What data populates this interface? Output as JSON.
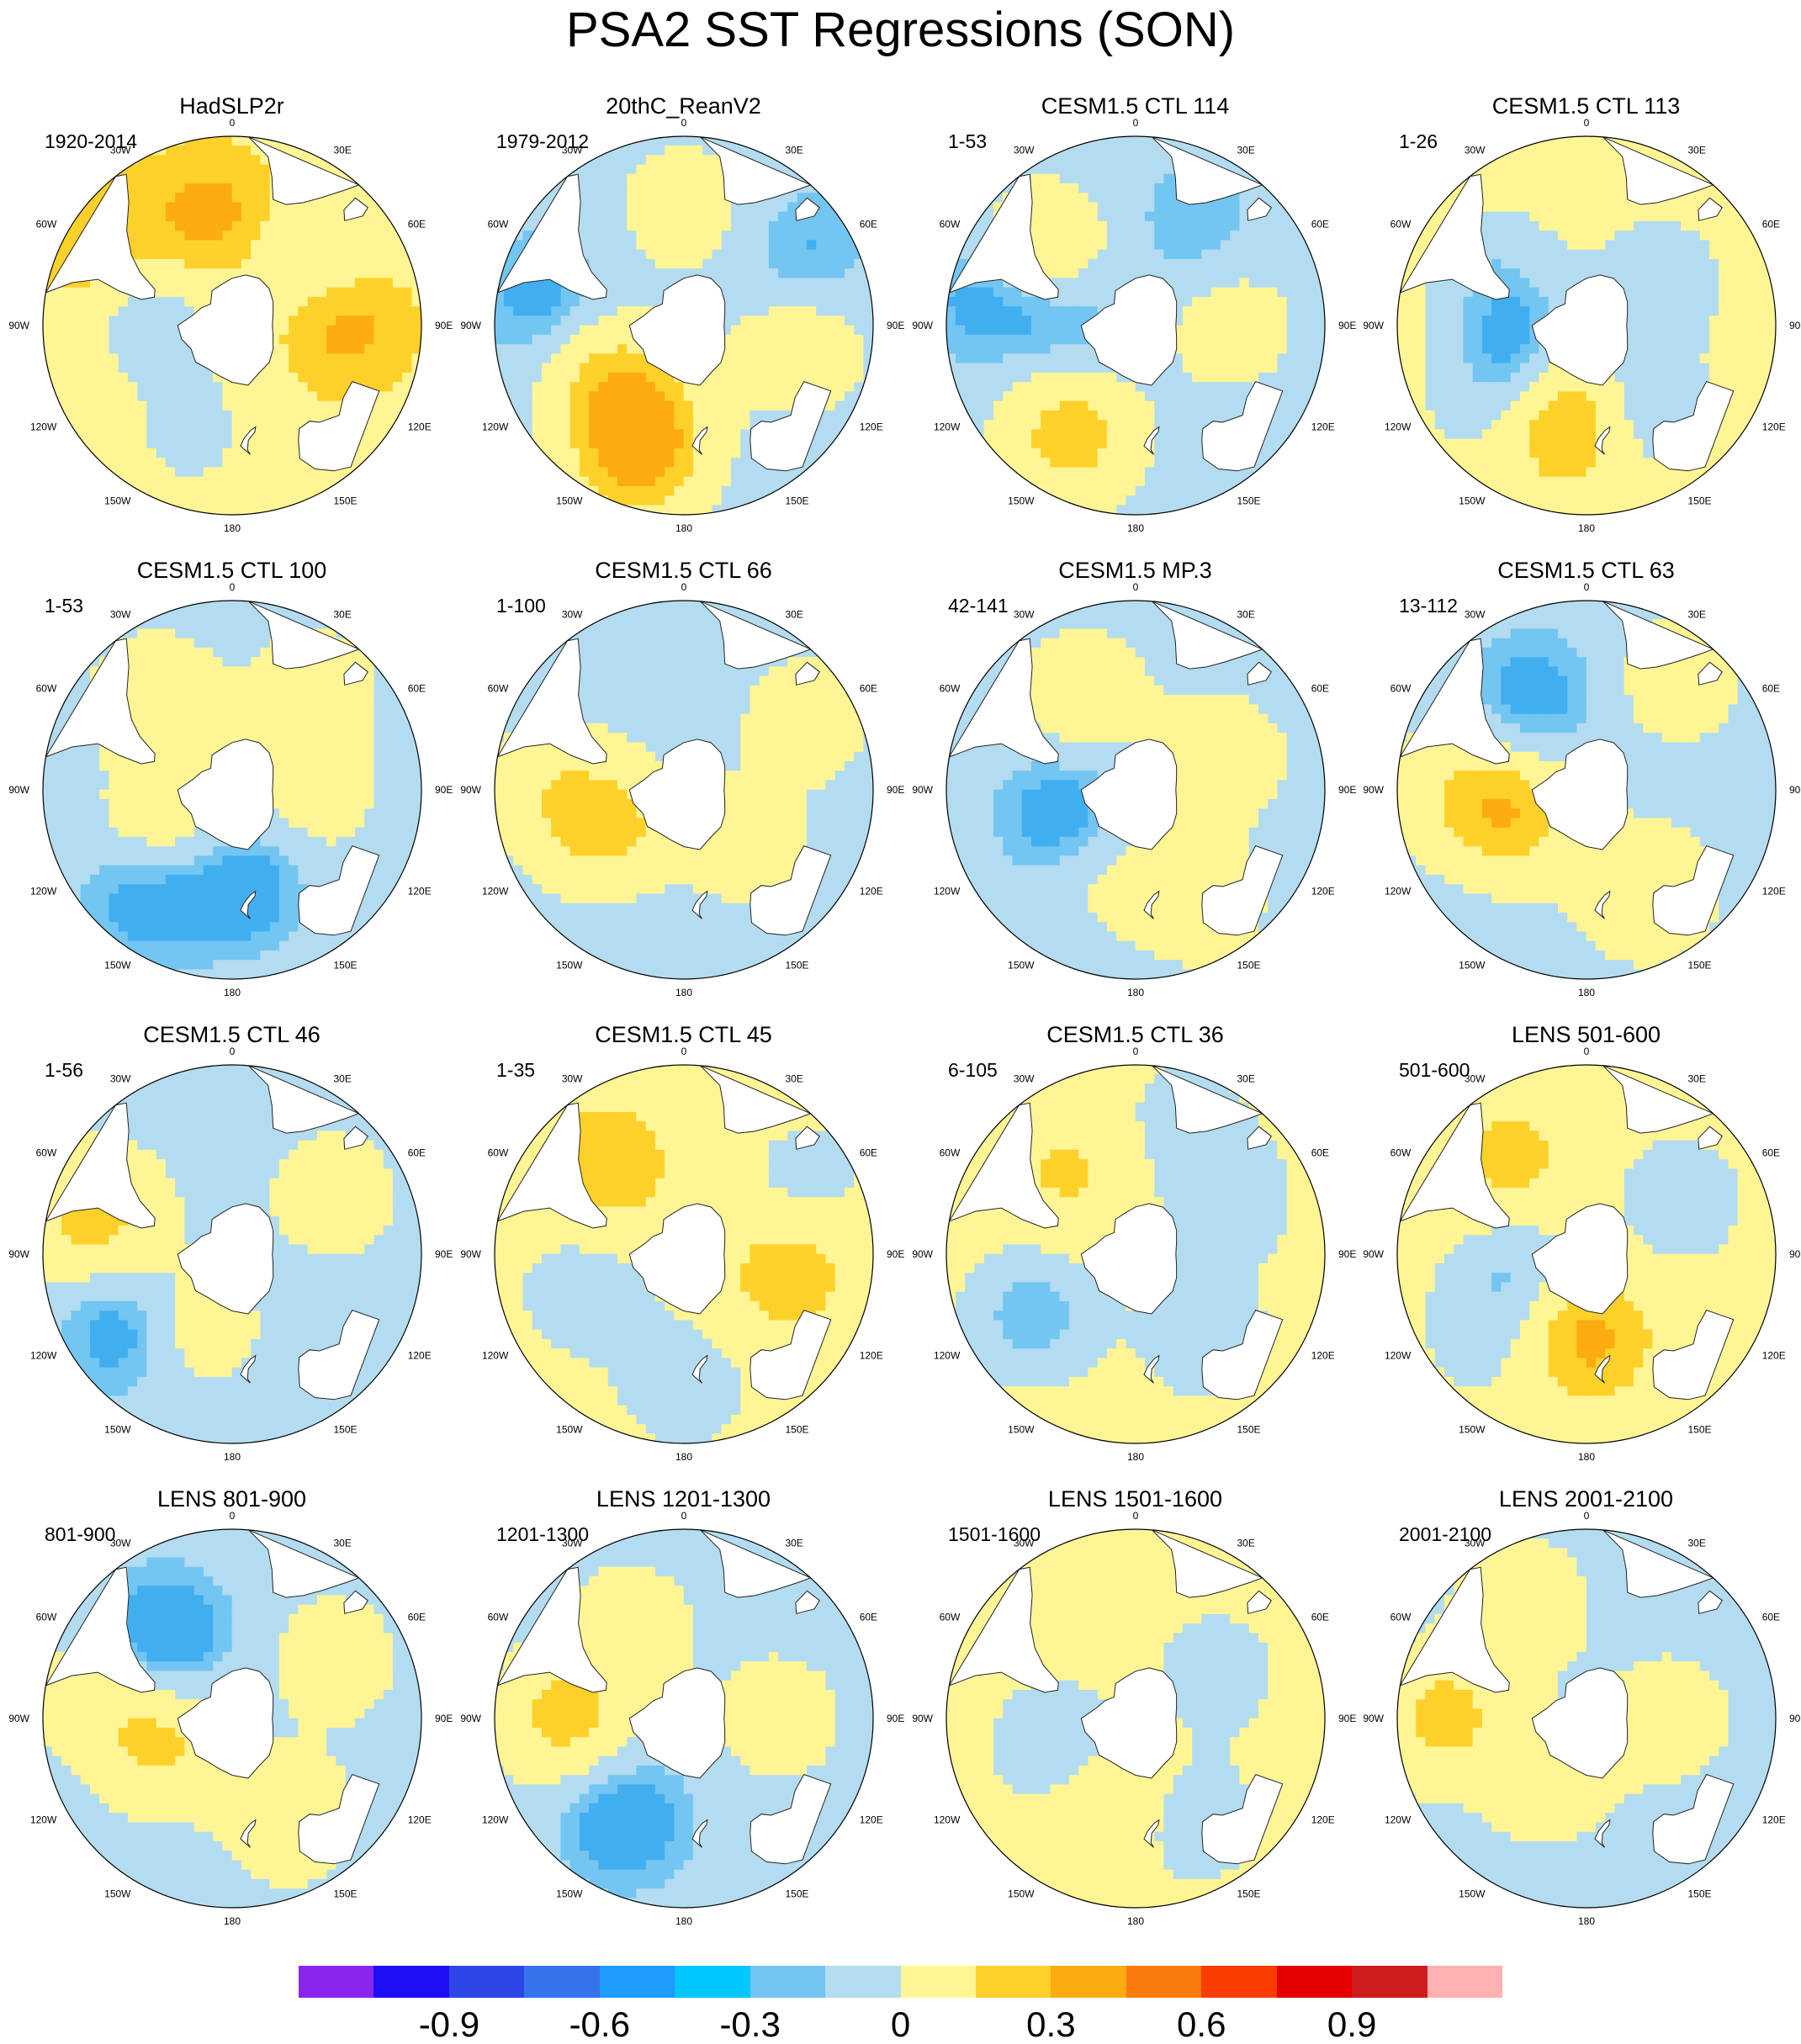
{
  "title": "PSA2 SST Regressions (SON)",
  "map_labels": {
    "lon": [
      "0",
      "30E",
      "60E",
      "90E",
      "120E",
      "150E",
      "180",
      "150W",
      "120W",
      "90W",
      "60W",
      "30W"
    ]
  },
  "colors": {
    "neg_weak": "#b3dcf0",
    "neg_mod": "#73c5f2",
    "neg_strong": "#41aef0",
    "pos_weak": "#fff595",
    "pos_mod": "#fdd12a",
    "pos_strong": "#fcab11",
    "land": "#ffffff",
    "coast": "#222222"
  },
  "colorbar": {
    "colors": [
      "#8a25ed",
      "#1e0df5",
      "#2f46e6",
      "#3573ea",
      "#1f9aff",
      "#00c7ff",
      "#73c5f2",
      "#b3dcf0",
      "#fff595",
      "#fdd12a",
      "#fcab11",
      "#fb7a0e",
      "#fb3d00",
      "#e60000",
      "#d01c1e",
      "#ffb0b0"
    ],
    "tick_labels": [
      "-0.9",
      "-0.6",
      "-0.3",
      "0",
      "0.3",
      "0.6",
      "0.9"
    ]
  },
  "chart_data": {
    "type": "polar-contour-map",
    "units_hint": "SST regression coefficient",
    "levels": [
      -1.05,
      -0.9,
      -0.75,
      -0.6,
      -0.45,
      -0.3,
      -0.15,
      0,
      0.15,
      0.3,
      0.45,
      0.6,
      0.75,
      0.9,
      1.05
    ],
    "panels": [
      {
        "title": "HadSLP2r",
        "period": "1920-2014",
        "base": 0.1,
        "anomalies": [
          {
            "lon": 280,
            "lat": -45,
            "value": -0.12
          },
          {
            "lon": 260,
            "lat": -65,
            "value": -0.1
          },
          {
            "lon": 200,
            "lat": -40,
            "value": -0.14
          },
          {
            "lon": 50,
            "lat": -45,
            "value": -0.13
          },
          {
            "lon": 350,
            "lat": -42,
            "value": 0.2
          },
          {
            "lon": 90,
            "lat": -42,
            "value": 0.2
          },
          {
            "lon": 300,
            "lat": -22,
            "value": 0.18
          }
        ]
      },
      {
        "title": "20thC_ReanV2",
        "period": "1979-2012",
        "base": -0.05,
        "anomalies": [
          {
            "lon": 200,
            "lat": -30,
            "value": 0.3
          },
          {
            "lon": 240,
            "lat": -50,
            "value": 0.2
          },
          {
            "lon": 200,
            "lat": -50,
            "value": 0.15
          },
          {
            "lon": 100,
            "lat": -40,
            "value": 0.15
          },
          {
            "lon": 60,
            "lat": -30,
            "value": -0.12
          },
          {
            "lon": 0,
            "lat": -40,
            "value": 0.12
          },
          {
            "lon": 280,
            "lat": -30,
            "value": -0.15
          }
        ]
      },
      {
        "title": "CESM1.5 CTL 114",
        "period": "1-53",
        "base": -0.05,
        "anomalies": [
          {
            "lon": 210,
            "lat": -35,
            "value": 0.25
          },
          {
            "lon": 240,
            "lat": -55,
            "value": 0.12
          },
          {
            "lon": 260,
            "lat": -60,
            "value": -0.2
          },
          {
            "lon": 310,
            "lat": -40,
            "value": 0.18
          },
          {
            "lon": 90,
            "lat": -50,
            "value": 0.12
          },
          {
            "lon": 30,
            "lat": -40,
            "value": -0.1
          },
          {
            "lon": 280,
            "lat": -25,
            "value": -0.14
          }
        ]
      },
      {
        "title": "CESM1.5 CTL 113",
        "period": "1-26",
        "base": 0.05,
        "anomalies": [
          {
            "lon": 190,
            "lat": -50,
            "value": 0.3
          },
          {
            "lon": 250,
            "lat": -60,
            "value": -0.2
          },
          {
            "lon": 150,
            "lat": -50,
            "value": -0.18
          },
          {
            "lon": 300,
            "lat": -45,
            "value": -0.12
          },
          {
            "lon": 60,
            "lat": -55,
            "value": -0.12
          },
          {
            "lon": 230,
            "lat": -35,
            "value": -0.08
          }
        ]
      },
      {
        "title": "CESM1.5 CTL 100",
        "period": "1-53",
        "base": -0.05,
        "anomalies": [
          {
            "lon": 220,
            "lat": -35,
            "value": -0.2
          },
          {
            "lon": 175,
            "lat": -50,
            "value": -0.18
          },
          {
            "lon": 235,
            "lat": -55,
            "value": 0.2
          },
          {
            "lon": 320,
            "lat": -40,
            "value": 0.15
          },
          {
            "lon": 40,
            "lat": -35,
            "value": 0.12
          },
          {
            "lon": 100,
            "lat": -55,
            "value": 0.1
          }
        ]
      },
      {
        "title": "CESM1.5 CTL 66",
        "period": "1-100",
        "base": -0.05,
        "anomalies": [
          {
            "lon": 240,
            "lat": -55,
            "value": 0.22
          },
          {
            "lon": 270,
            "lat": -35,
            "value": 0.15
          },
          {
            "lon": 140,
            "lat": -55,
            "value": 0.14
          },
          {
            "lon": 60,
            "lat": -30,
            "value": 0.12
          },
          {
            "lon": 180,
            "lat": -35,
            "value": -0.05
          }
        ]
      },
      {
        "title": "CESM1.5 MP.3",
        "period": "42-141",
        "base": -0.05,
        "anomalies": [
          {
            "lon": 250,
            "lat": -58,
            "value": -0.18
          },
          {
            "lon": 330,
            "lat": -45,
            "value": 0.15
          },
          {
            "lon": 150,
            "lat": -35,
            "value": 0.13
          },
          {
            "lon": 70,
            "lat": -50,
            "value": 0.12
          },
          {
            "lon": 200,
            "lat": -55,
            "value": 0.1
          }
        ]
      },
      {
        "title": "CESM1.5 CTL 63",
        "period": "13-112",
        "base": -0.05,
        "anomalies": [
          {
            "lon": 250,
            "lat": -58,
            "value": 0.25
          },
          {
            "lon": 270,
            "lat": -35,
            "value": 0.15
          },
          {
            "lon": 150,
            "lat": -40,
            "value": 0.18
          },
          {
            "lon": 330,
            "lat": -45,
            "value": -0.15
          },
          {
            "lon": 40,
            "lat": -30,
            "value": 0.12
          }
        ]
      },
      {
        "title": "CESM1.5 CTL 46",
        "period": "1-56",
        "base": -0.05,
        "anomalies": [
          {
            "lon": 235,
            "lat": -35,
            "value": -0.18
          },
          {
            "lon": 210,
            "lat": -55,
            "value": 0.15
          },
          {
            "lon": 290,
            "lat": -35,
            "value": 0.12
          },
          {
            "lon": 60,
            "lat": -40,
            "value": 0.12
          },
          {
            "lon": 280,
            "lat": -25,
            "value": 0.15
          }
        ]
      },
      {
        "title": "CESM1.5 CTL 45",
        "period": "1-35",
        "base": 0.05,
        "anomalies": [
          {
            "lon": 320,
            "lat": -40,
            "value": 0.2
          },
          {
            "lon": 250,
            "lat": -45,
            "value": -0.12
          },
          {
            "lon": 180,
            "lat": -35,
            "value": -0.12
          },
          {
            "lon": 100,
            "lat": -45,
            "value": 0.18
          },
          {
            "lon": 60,
            "lat": -30,
            "value": -0.1
          }
        ]
      },
      {
        "title": "CESM1.5 CTL 36",
        "period": "6-105",
        "base": 0.05,
        "anomalies": [
          {
            "lon": 240,
            "lat": -40,
            "value": -0.2
          },
          {
            "lon": 140,
            "lat": -45,
            "value": -0.12
          },
          {
            "lon": 60,
            "lat": -45,
            "value": -0.12
          },
          {
            "lon": 320,
            "lat": -45,
            "value": 0.12
          },
          {
            "lon": 20,
            "lat": -30,
            "value": -0.1
          }
        ]
      },
      {
        "title": "LENS 501-600",
        "period": "501-600",
        "base": 0.05,
        "anomalies": [
          {
            "lon": 180,
            "lat": -55,
            "value": 0.25
          },
          {
            "lon": 260,
            "lat": -60,
            "value": -0.15
          },
          {
            "lon": 60,
            "lat": -45,
            "value": -0.12
          },
          {
            "lon": 320,
            "lat": -40,
            "value": 0.15
          },
          {
            "lon": 230,
            "lat": -35,
            "value": -0.1
          }
        ]
      },
      {
        "title": "LENS 801-900",
        "period": "801-900",
        "base": -0.05,
        "anomalies": [
          {
            "lon": 250,
            "lat": -58,
            "value": 0.22
          },
          {
            "lon": 320,
            "lat": -45,
            "value": -0.2
          },
          {
            "lon": 150,
            "lat": -40,
            "value": 0.14
          },
          {
            "lon": 60,
            "lat": -40,
            "value": 0.12
          },
          {
            "lon": 280,
            "lat": -30,
            "value": 0.12
          }
        ]
      },
      {
        "title": "LENS 1201-1300",
        "period": "1201-1300",
        "base": -0.05,
        "anomalies": [
          {
            "lon": 270,
            "lat": -40,
            "value": 0.25
          },
          {
            "lon": 210,
            "lat": -40,
            "value": -0.18
          },
          {
            "lon": 330,
            "lat": -45,
            "value": 0.12
          },
          {
            "lon": 90,
            "lat": -50,
            "value": 0.12
          }
        ]
      },
      {
        "title": "LENS 1501-1600",
        "period": "1501-1600",
        "base": 0.05,
        "anomalies": [
          {
            "lon": 250,
            "lat": -55,
            "value": -0.15
          },
          {
            "lon": 150,
            "lat": -40,
            "value": -0.12
          },
          {
            "lon": 60,
            "lat": -50,
            "value": -0.1
          },
          {
            "lon": 200,
            "lat": -55,
            "value": 0.1
          }
        ]
      },
      {
        "title": "LENS 2001-2100",
        "period": "2001-2100",
        "base": -0.05,
        "anomalies": [
          {
            "lon": 270,
            "lat": -30,
            "value": 0.25
          },
          {
            "lon": 200,
            "lat": -55,
            "value": 0.15
          },
          {
            "lon": 330,
            "lat": -35,
            "value": 0.15
          },
          {
            "lon": 90,
            "lat": -55,
            "value": 0.12
          },
          {
            "lon": 180,
            "lat": -35,
            "value": -0.05
          }
        ]
      }
    ]
  }
}
